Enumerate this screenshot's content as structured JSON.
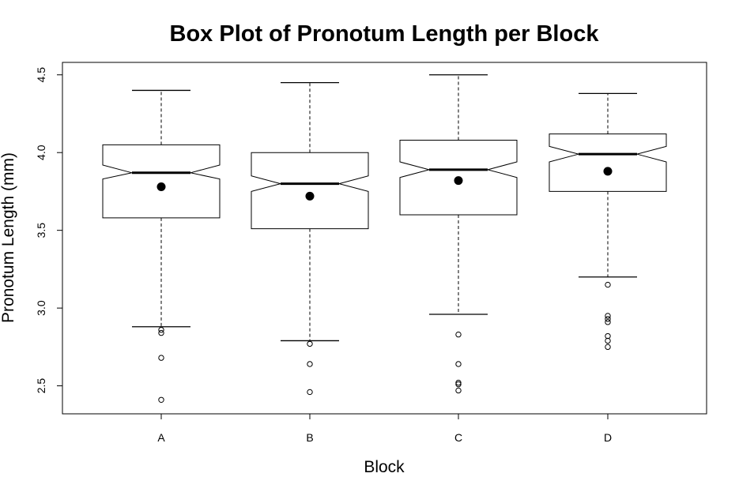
{
  "chart_data": {
    "type": "boxplot",
    "title": "Box Plot of Pronotum Length per Block",
    "xlabel": "Block",
    "ylabel": "Pronotum Length (mm)",
    "categories": [
      "A",
      "B",
      "C",
      "D"
    ],
    "ylim": [
      2.32,
      4.58
    ],
    "yticks": [
      2.5,
      3.0,
      3.5,
      4.0,
      4.5
    ],
    "ytick_labels": [
      "2.5",
      "3.0",
      "3.5",
      "4.0",
      "4.5"
    ],
    "notched": true,
    "grid": false,
    "boxes": [
      {
        "name": "A",
        "whisker_low": 2.88,
        "q1": 3.58,
        "median": 3.87,
        "q3": 4.05,
        "whisker_high": 4.4,
        "notch_low": 3.83,
        "notch_high": 3.92,
        "mean": 3.78,
        "outliers": [
          2.86,
          2.84,
          2.68,
          2.41
        ]
      },
      {
        "name": "B",
        "whisker_low": 2.79,
        "q1": 3.51,
        "median": 3.8,
        "q3": 4.0,
        "whisker_high": 4.45,
        "notch_low": 3.75,
        "notch_high": 3.85,
        "mean": 3.72,
        "outliers": [
          2.77,
          2.64,
          2.46
        ]
      },
      {
        "name": "C",
        "whisker_low": 2.96,
        "q1": 3.6,
        "median": 3.89,
        "q3": 4.08,
        "whisker_high": 4.5,
        "notch_low": 3.84,
        "notch_high": 3.94,
        "mean": 3.82,
        "outliers": [
          2.83,
          2.64,
          2.52,
          2.51,
          2.47
        ]
      },
      {
        "name": "D",
        "whisker_low": 3.2,
        "q1": 3.75,
        "median": 3.99,
        "q3": 4.12,
        "whisker_high": 4.38,
        "notch_low": 3.94,
        "notch_high": 4.04,
        "mean": 3.88,
        "outliers": [
          3.15,
          2.95,
          2.93,
          2.91,
          2.82,
          2.79,
          2.75
        ]
      }
    ]
  }
}
